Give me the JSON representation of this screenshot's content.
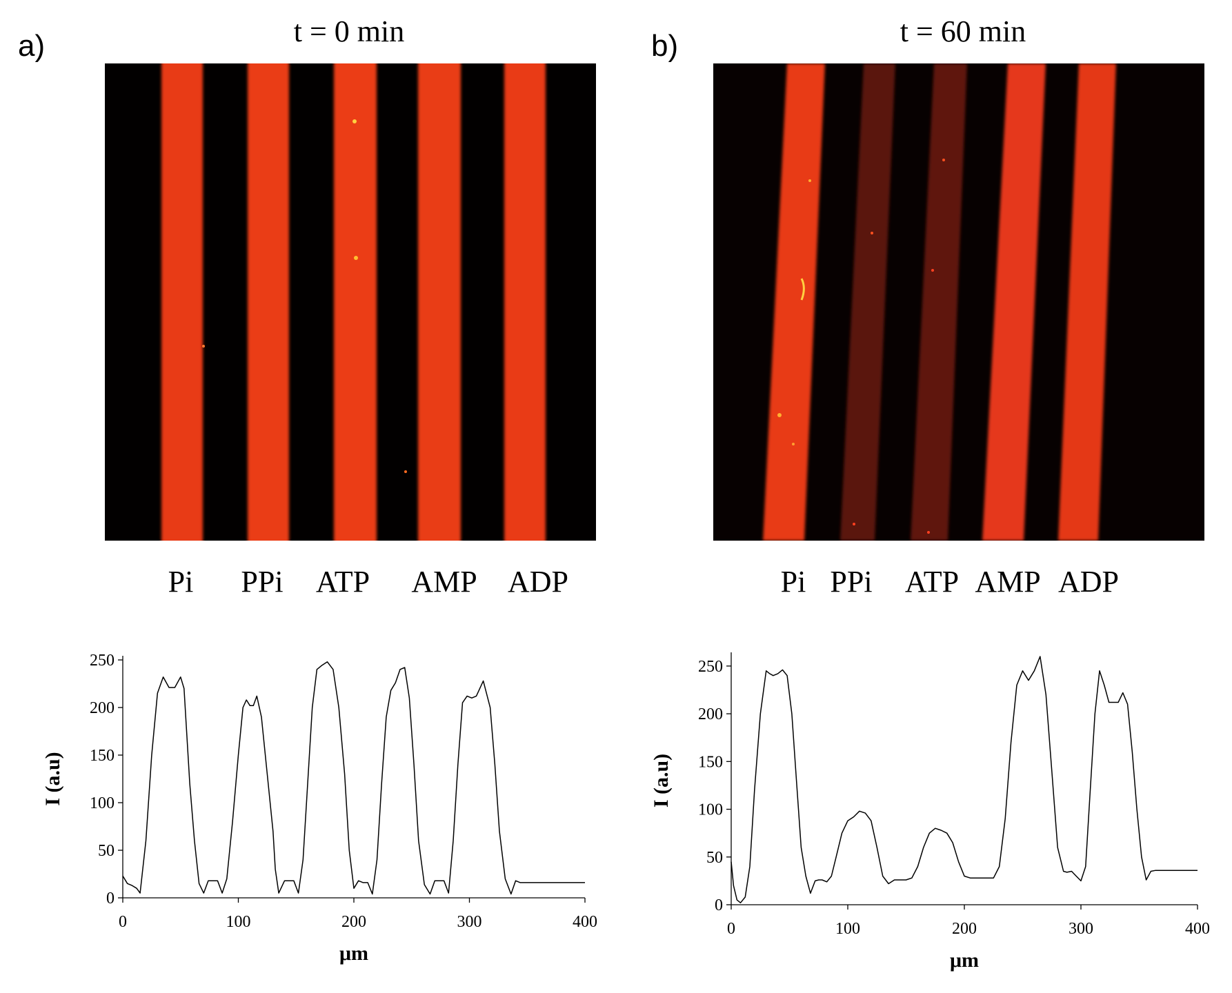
{
  "panels": [
    {
      "label": "a)",
      "title": "t = 0 min",
      "lanes": [
        "Pi",
        "PPi",
        "ATP",
        "AMP",
        "ADP"
      ],
      "image": {
        "background": "#020000",
        "stripe_color": "#e83a12",
        "dim_color": "#5a1208"
      }
    },
    {
      "label": "b)",
      "title": "t = 60 min",
      "lanes": [
        "Pi",
        "PPi",
        "ATP",
        "AMP",
        "ADP"
      ],
      "image": {
        "background": "#070101",
        "stripe_color": "#e83a12",
        "dim_color": "#5e1409"
      }
    }
  ],
  "chart_data": [
    {
      "type": "line",
      "title": "",
      "xlabel": "μm",
      "ylabel": "I (a.u)",
      "xlim": [
        0,
        400
      ],
      "ylim": [
        0,
        250
      ],
      "xticks": [
        0,
        100,
        200,
        300,
        400
      ],
      "yticks": [
        0,
        50,
        100,
        150,
        200,
        250
      ],
      "line_color": "#000000",
      "series": [
        {
          "name": "t = 0 min",
          "x": [
            0,
            4,
            8,
            12,
            15,
            20,
            25,
            30,
            35,
            40,
            45,
            50,
            53,
            55,
            58,
            62,
            66,
            70,
            74,
            78,
            82,
            86,
            90,
            95,
            100,
            104,
            107,
            110,
            113,
            116,
            120,
            125,
            130,
            132,
            135,
            140,
            144,
            148,
            152,
            156,
            160,
            164,
            168,
            172,
            177,
            182,
            187,
            192,
            196,
            200,
            204,
            208,
            212,
            216,
            220,
            224,
            228,
            232,
            236,
            240,
            244,
            248,
            252,
            256,
            261,
            266,
            270,
            274,
            278,
            282,
            286,
            290,
            294,
            298,
            302,
            306,
            312,
            318,
            322,
            326,
            331,
            336,
            340,
            344,
            348,
            352,
            356,
            362,
            366,
            370,
            374,
            378,
            382,
            386,
            390,
            395,
            400
          ],
          "y": [
            23,
            15,
            13,
            10,
            5,
            60,
            150,
            215,
            232,
            221,
            221,
            232,
            220,
            180,
            120,
            60,
            15,
            5,
            18,
            18,
            18,
            5,
            20,
            80,
            150,
            200,
            208,
            202,
            202,
            212,
            190,
            130,
            70,
            30,
            5,
            18,
            18,
            18,
            5,
            40,
            120,
            200,
            240,
            244,
            248,
            240,
            200,
            130,
            50,
            10,
            18,
            16,
            16,
            4,
            40,
            120,
            190,
            218,
            226,
            240,
            242,
            210,
            140,
            60,
            14,
            4,
            18,
            18,
            18,
            5,
            60,
            140,
            205,
            212,
            210,
            212,
            228,
            200,
            140,
            70,
            20,
            4,
            18,
            16,
            16,
            16,
            16,
            16,
            16,
            16,
            16,
            16,
            16,
            16,
            16,
            16,
            16
          ]
        }
      ]
    },
    {
      "type": "line",
      "title": "",
      "xlabel": "μm",
      "ylabel": "I (a.u)",
      "xlim": [
        0,
        400
      ],
      "ylim": [
        0,
        260
      ],
      "xticks": [
        0,
        100,
        200,
        300,
        400
      ],
      "yticks": [
        0,
        50,
        100,
        150,
        200,
        250
      ],
      "line_color": "#000000",
      "series": [
        {
          "name": "t = 60 min",
          "x": [
            0,
            2,
            5,
            8,
            12,
            16,
            20,
            25,
            30,
            33,
            36,
            40,
            44,
            48,
            52,
            56,
            60,
            64,
            68,
            72,
            75,
            78,
            82,
            86,
            90,
            95,
            100,
            105,
            110,
            115,
            120,
            125,
            130,
            135,
            140,
            145,
            150,
            155,
            160,
            165,
            170,
            175,
            180,
            185,
            190,
            195,
            200,
            205,
            210,
            215,
            220,
            225,
            230,
            235,
            240,
            245,
            250,
            255,
            260,
            265,
            270,
            275,
            280,
            285,
            288,
            292,
            296,
            300,
            304,
            308,
            312,
            316,
            320,
            324,
            328,
            332,
            336,
            340,
            344,
            348,
            352,
            356,
            360,
            364,
            368,
            372,
            376,
            380,
            384,
            388,
            392,
            396,
            400
          ],
          "y": [
            45,
            20,
            5,
            2,
            8,
            40,
            120,
            200,
            245,
            242,
            240,
            242,
            246,
            240,
            200,
            130,
            60,
            30,
            12,
            25,
            26,
            26,
            24,
            30,
            50,
            75,
            88,
            92,
            98,
            96,
            88,
            60,
            30,
            22,
            26,
            26,
            26,
            28,
            40,
            60,
            75,
            80,
            78,
            75,
            65,
            45,
            30,
            28,
            28,
            28,
            28,
            28,
            40,
            90,
            170,
            230,
            245,
            235,
            245,
            260,
            220,
            140,
            60,
            35,
            34,
            35,
            30,
            25,
            40,
            120,
            200,
            245,
            230,
            212,
            212,
            212,
            222,
            210,
            160,
            100,
            50,
            26,
            35,
            36,
            36,
            36,
            36,
            36,
            36,
            36,
            36,
            36,
            36
          ]
        }
      ]
    }
  ]
}
